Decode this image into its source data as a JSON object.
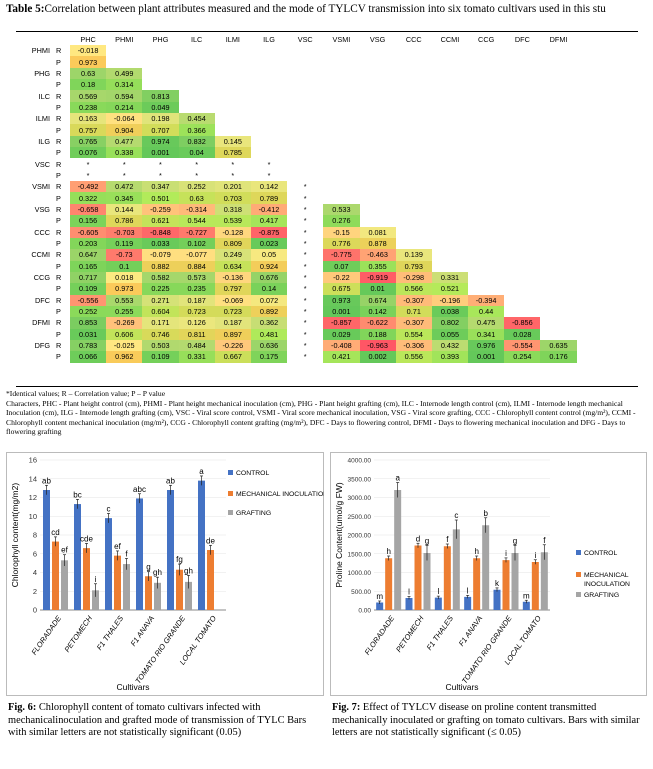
{
  "table": {
    "title_bold": "Table 5:",
    "title_text": "Correlation between plant attributes measured and the mode of TYLCV transmission into six tomato cultivars used in this stu",
    "columns": [
      "PHC",
      "PHMI",
      "PHG",
      "ILC",
      "ILMI",
      "ILG",
      "VSC",
      "VSMI",
      "VSG",
      "CCC",
      "CCMI",
      "CCG",
      "DFC",
      "DFMI"
    ],
    "rows": [
      {
        "name": "PHMI",
        "r": [
          "-0.018"
        ],
        "p": [
          "0.973"
        ]
      },
      {
        "name": "PHG",
        "r": [
          "0.63",
          "0.499"
        ],
        "p": [
          "0.18",
          "0.314"
        ]
      },
      {
        "name": "ILC",
        "r": [
          "0.569",
          "0.594",
          "0.813"
        ],
        "p": [
          "0.238",
          "0.214",
          "0.049"
        ]
      },
      {
        "name": "ILMI",
        "r": [
          "0.163",
          "-0.064",
          "0.198",
          "0.454"
        ],
        "p": [
          "0.757",
          "0.904",
          "0.707",
          "0.366"
        ]
      },
      {
        "name": "ILG",
        "r": [
          "0.765",
          "0.477",
          "0.974",
          "0.832",
          "0.145"
        ],
        "p": [
          "0.076",
          "0.338",
          "0.001",
          "0.04",
          "0.785"
        ]
      },
      {
        "name": "VSC",
        "r": [
          "*",
          "*",
          "*",
          "*",
          "*",
          "*"
        ],
        "p": [
          "*",
          "*",
          "*",
          "*",
          "*",
          "*"
        ]
      },
      {
        "name": "VSMI",
        "r": [
          "-0.492",
          "0.472",
          "0.347",
          "0.252",
          "0.201",
          "0.142",
          "*"
        ],
        "p": [
          "0.322",
          "0.345",
          "0.501",
          "0.63",
          "0.703",
          "0.789",
          "*"
        ]
      },
      {
        "name": "VSG",
        "r": [
          "-0.658",
          "0.144",
          "-0.259",
          "-0.314",
          "0.318",
          "-0.412",
          "*",
          "0.533"
        ],
        "p": [
          "0.156",
          "0.786",
          "0.621",
          "0.544",
          "0.539",
          "0.417",
          "*",
          "0.276"
        ]
      },
      {
        "name": "CCC",
        "r": [
          "-0.605",
          "-0.703",
          "-0.848",
          "-0.727",
          "-0.128",
          "-0.875",
          "*",
          "-0.15",
          "0.081"
        ],
        "p": [
          "0.203",
          "0.119",
          "0.033",
          "0.102",
          "0.809",
          "0.023",
          "*",
          "0.776",
          "0.878"
        ]
      },
      {
        "name": "CCMI",
        "r": [
          "0.647",
          "-0.73",
          "-0.079",
          "-0.077",
          "0.249",
          "0.05",
          "*",
          "-0.775",
          "-0.463",
          "0.139"
        ],
        "p": [
          "0.165",
          "0.1",
          "0.882",
          "0.884",
          "0.634",
          "0.924",
          "*",
          "0.07",
          "0.355",
          "0.793"
        ]
      },
      {
        "name": "CCG",
        "r": [
          "0.717",
          "0.018",
          "0.582",
          "0.573",
          "-0.136",
          "0.676",
          "*",
          "-0.22",
          "-0.919",
          "-0.298",
          "0.331"
        ],
        "p": [
          "0.109",
          "0.973",
          "0.225",
          "0.235",
          "0.797",
          "0.14",
          "*",
          "0.675",
          "0.01",
          "0.566",
          "0.521"
        ]
      },
      {
        "name": "DFC",
        "r": [
          "-0.556",
          "0.553",
          "0.271",
          "0.187",
          "-0.069",
          "0.072",
          "*",
          "0.973",
          "0.674",
          "-0.307",
          "-0.196",
          "-0.394"
        ],
        "p": [
          "0.252",
          "0.255",
          "0.604",
          "0.723",
          "0.723",
          "0.892",
          "*",
          "0.001",
          "0.142",
          "0.71",
          "0.038",
          "0.44"
        ]
      },
      {
        "name": "DFMI",
        "r": [
          "0.853",
          "-0.269",
          "0.171",
          "0.126",
          "0.187",
          "0.362",
          "*",
          "-0.857",
          "-0.622",
          "-0.307",
          "0.802",
          "0.475",
          "-0.856"
        ],
        "p": [
          "0.031",
          "0.606",
          "0.746",
          "0.811",
          "0.897",
          "0.481",
          "*",
          "0.029",
          "0.188",
          "0.554",
          "0.055",
          "0.341",
          "0.028"
        ]
      },
      {
        "name": "DFG",
        "r": [
          "0.783",
          "-0.025",
          "0.503",
          "0.484",
          "-0.226",
          "0.636",
          "*",
          "-0.408",
          "-0.963",
          "-0.306",
          "0.432",
          "0.976",
          "-0.554",
          "0.635"
        ],
        "p": [
          "0.066",
          "0.962",
          "0.109",
          "0.331",
          "0.667",
          "0.175",
          "*",
          "0.421",
          "0.002",
          "0.556",
          "0.393",
          "0.001",
          "0.254",
          "0.176"
        ]
      }
    ],
    "r_label": "R",
    "p_label": "P",
    "notes": "*Identical values; R – Correlation value; P – P value\nCharacters, PHC - Plant height control (cm), PHMI - Plant height mechanical inoculation (cm), PHG - Plant height grafting (cm), ILC - Internode length control (cm), ILMI - Internode length mechanical Inoculation (cm), ILG - Internode length grafting (cm), VSC - Viral score control, VSMI - Viral score mechanical inoculation, VSG - Viral score grafting, CCC - Chlorophyll content control (mg/m²), CCMI - Chlorophyll content mechanical inoculation (mg/m²), CCG - Chlorophyll content grafting (mg/m²), DFC - Days to flowering control, DFMI - Days to flowering mechanical inoculation and DFG - Days to flowering grafting"
  },
  "fig6": {
    "caption_bold": "Fig. 6:",
    "caption_text": " Chlorophyll content of tomato cultivars infected with mechanicalinoculation and grafted mode of transmission of TYLC Bars with similar letters are not statistically significant (0.05)",
    "chart_data": {
      "type": "bar",
      "categories": [
        "FLORADADE",
        "PETOMECH",
        "F1 THALES",
        "F1 ANAVA",
        "TOMATO RIO GRANDE",
        "LOCAL TOMATO"
      ],
      "series": [
        {
          "name": "CONTROL",
          "values": [
            12.8,
            11.3,
            9.8,
            11.9,
            12.8,
            13.8
          ],
          "errors": [
            0.5,
            0.5,
            0.5,
            0.5,
            0.5,
            0.5
          ],
          "letters": [
            "ab",
            "bc",
            "c",
            "abc",
            "ab",
            "a"
          ],
          "color": "#4472C4"
        },
        {
          "name": "MECHANICAL INOCULATION",
          "values": [
            7.3,
            6.6,
            5.8,
            3.6,
            4.3,
            6.4
          ],
          "errors": [
            0.5,
            0.5,
            0.5,
            0.5,
            0.6,
            0.5
          ],
          "letters": [
            "cd",
            "cde",
            "ef",
            "g",
            "fg",
            "de"
          ],
          "color": "#ED7D31"
        },
        {
          "name": "GRAFTING",
          "values": [
            5.3,
            2.1,
            4.9,
            2.9,
            3.0,
            null
          ],
          "errors": [
            0.6,
            0.7,
            0.6,
            0.6,
            0.7,
            null
          ],
          "letters": [
            "ef",
            "i",
            "f",
            "gh",
            "gh",
            "ghi"
          ],
          "color": "#A5A5A5"
        }
      ],
      "ylabel": "Chlorophyll content(mg/m2)",
      "xlabel": "Cultivars",
      "ylim": [
        0,
        16
      ],
      "yticks": [
        "0",
        "2",
        "4",
        "6",
        "8",
        "10",
        "12",
        "14",
        "16"
      ],
      "legend_position": "right"
    }
  },
  "fig7": {
    "caption_bold": "Fig. 7:",
    "caption_text": " Effect of TYLCV disease on proline content transmitted mechanically inoculated or grafting on tomato cultivars. Bars with similar letters are not statistically significant (≤ 0.05)",
    "chart_data": {
      "type": "bar",
      "categories": [
        "FLORADADE",
        "PETOMECH",
        "F1 THALES",
        "F1 ANAVA",
        "TOMATO RIO GRANDE",
        "LOCAL TOMATO"
      ],
      "series": [
        {
          "name": "CONTROL",
          "values": [
            200,
            320,
            330,
            350,
            540,
            220
          ],
          "errors": [
            40,
            40,
            40,
            40,
            50,
            40
          ],
          "letters": [
            "m",
            "l",
            "l",
            "l",
            "k",
            "m"
          ],
          "color": "#4472C4"
        },
        {
          "name": "MECHANICAL INOCULATION",
          "values": [
            1380,
            1720,
            1700,
            1380,
            1330,
            1280
          ],
          "errors": [
            60,
            60,
            60,
            60,
            60,
            60
          ],
          "letters": [
            "h",
            "d",
            "f",
            "h",
            "i",
            "i"
          ],
          "color": "#ED7D31"
        },
        {
          "name": "GRAFTING",
          "values": [
            3200,
            1520,
            2150,
            2260,
            1520,
            1540
          ],
          "errors": [
            200,
            200,
            250,
            200,
            200,
            200
          ],
          "letters": [
            "a",
            "g",
            "c",
            "b",
            "g",
            "f"
          ],
          "color": "#A5A5A5"
        }
      ],
      "ylabel": "Proline Content(umol/g FW)",
      "xlabel": "Cultivars",
      "ylim": [
        0,
        4000
      ],
      "yticks": [
        "0.00",
        "500.00",
        "1000.00",
        "1500.00",
        "2000.00",
        "2500.00",
        "3000.00",
        "3500.00",
        "4000.00"
      ],
      "legend_position": "right"
    }
  }
}
